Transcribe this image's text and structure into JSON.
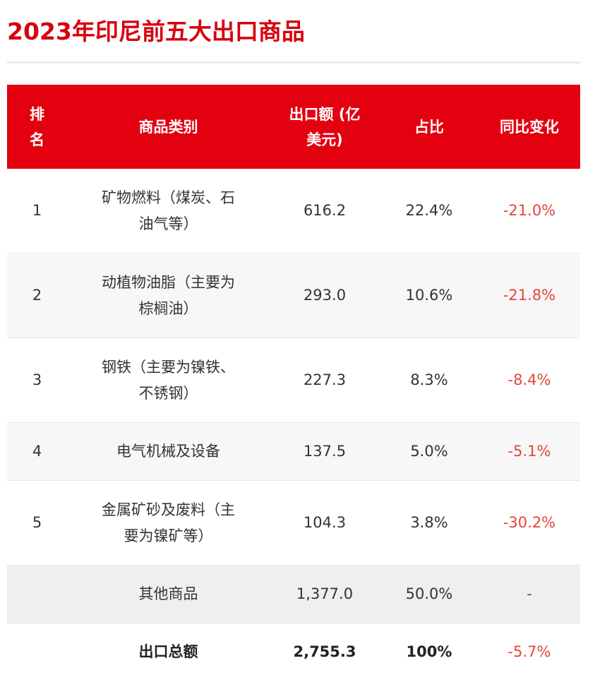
{
  "title": "2023年印尼前五大出口商品",
  "table": {
    "headers": {
      "rank": "排名",
      "category": "商品类别",
      "value": "出口额 (亿美元)",
      "share": "占比",
      "change": "同比变化"
    },
    "rows": [
      {
        "rank": "1",
        "category": "矿物燃料（煤炭、石油气等）",
        "value": "616.2",
        "share": "22.4%",
        "change": "-21.0%"
      },
      {
        "rank": "2",
        "category": "动植物油脂（主要为棕榈油）",
        "value": "293.0",
        "share": "10.6%",
        "change": "-21.8%"
      },
      {
        "rank": "3",
        "category": "钢铁（主要为镍铁、不锈钢）",
        "value": "227.3",
        "share": "8.3%",
        "change": "-8.4%"
      },
      {
        "rank": "4",
        "category": "电气机械及设备",
        "value": "137.5",
        "share": "5.0%",
        "change": "-5.1%"
      },
      {
        "rank": "5",
        "category": "金属矿砂及废料（主要为镍矿等）",
        "value": "104.3",
        "share": "3.8%",
        "change": "-30.2%"
      }
    ],
    "other": {
      "rank": "",
      "category": "其他商品",
      "value": "1,377.0",
      "share": "50.0%",
      "change": "-"
    },
    "total": {
      "rank": "",
      "category": "出口总额",
      "value": "2,755.3",
      "share": "100%",
      "change": "-5.7%"
    }
  },
  "colors": {
    "accent": "#e3000f",
    "title": "#d7000f",
    "negative_change": "#e0473c"
  }
}
